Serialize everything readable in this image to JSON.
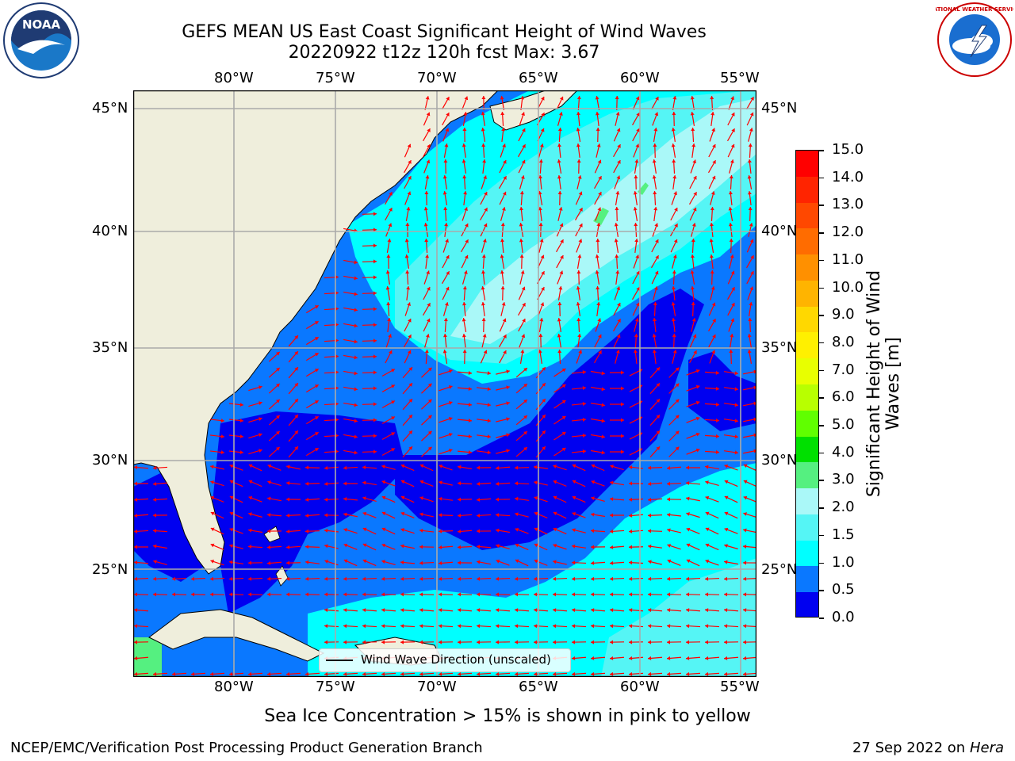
{
  "header": {
    "title_line1": "GEFS MEAN US East Coast Significant Height of Wind Waves",
    "title_line2": "20220922 t12z 120h fcst   Max: 3.67"
  },
  "logos": {
    "left_text": "NOAA",
    "right_text": "NATIONAL WEATHER SERVICE"
  },
  "map": {
    "lon_ticks": [
      "80°W",
      "75°W",
      "70°W",
      "65°W",
      "60°W",
      "55°W"
    ],
    "lat_ticks": [
      "45°N",
      "40°N",
      "35°N",
      "30°N",
      "25°N"
    ],
    "legend_label": "Wind Wave Direction (unscaled)",
    "colors": {
      "land": "#efeedc",
      "level_0_0_5": "#0000f0",
      "level_0_5_1_0": "#0a78ff",
      "level_1_0_1_5": "#00ffff",
      "level_1_5_2_0": "#55f5f5",
      "level_2_0_3_0": "#aaf8f8",
      "level_3_0_4_0": "#55f080",
      "arrow": "#ff0000",
      "grid": "#aaaaaa"
    }
  },
  "colorbar": {
    "label": "Significant Height of Wind Waves [m]",
    "ticks": [
      "15.0",
      "14.0",
      "13.0",
      "12.0",
      "11.0",
      "10.0",
      "9.0",
      "8.0",
      "7.0",
      "6.0",
      "5.0",
      "4.0",
      "3.0",
      "2.0",
      "1.5",
      "1.0",
      "0.5",
      "0.0"
    ],
    "colors": [
      "#ff0000",
      "#ff2400",
      "#ff4800",
      "#ff6c00",
      "#ff9000",
      "#ffb400",
      "#ffd800",
      "#fff000",
      "#e8ff00",
      "#b8ff00",
      "#60ff00",
      "#00e000",
      "#55f080",
      "#aaf8f8",
      "#55f5f5",
      "#00ffff",
      "#0a78ff",
      "#0000f0"
    ]
  },
  "footer": {
    "sea_ice_note": "Sea Ice Concentration > 15% is shown in pink to yellow",
    "branch": "NCEP/EMC/Verification Post Processing Product Generation Branch",
    "date": "27 Sep 2022 on",
    "machine": "Hera"
  }
}
